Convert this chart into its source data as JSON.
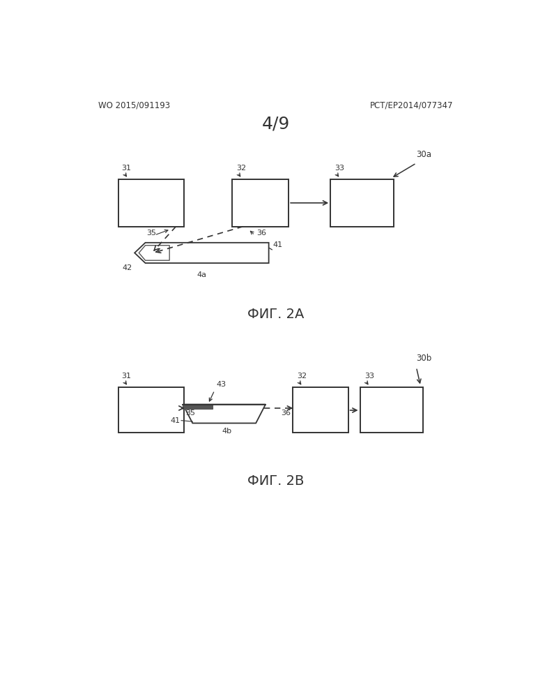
{
  "bg_color": "#ffffff",
  "title_page": "4/9",
  "header_left": "WO 2015/091193",
  "header_right": "PCT/EP2014/077347",
  "fig_a_label": "ФИГ. 2A",
  "fig_b_label": "ФИГ. 2B"
}
